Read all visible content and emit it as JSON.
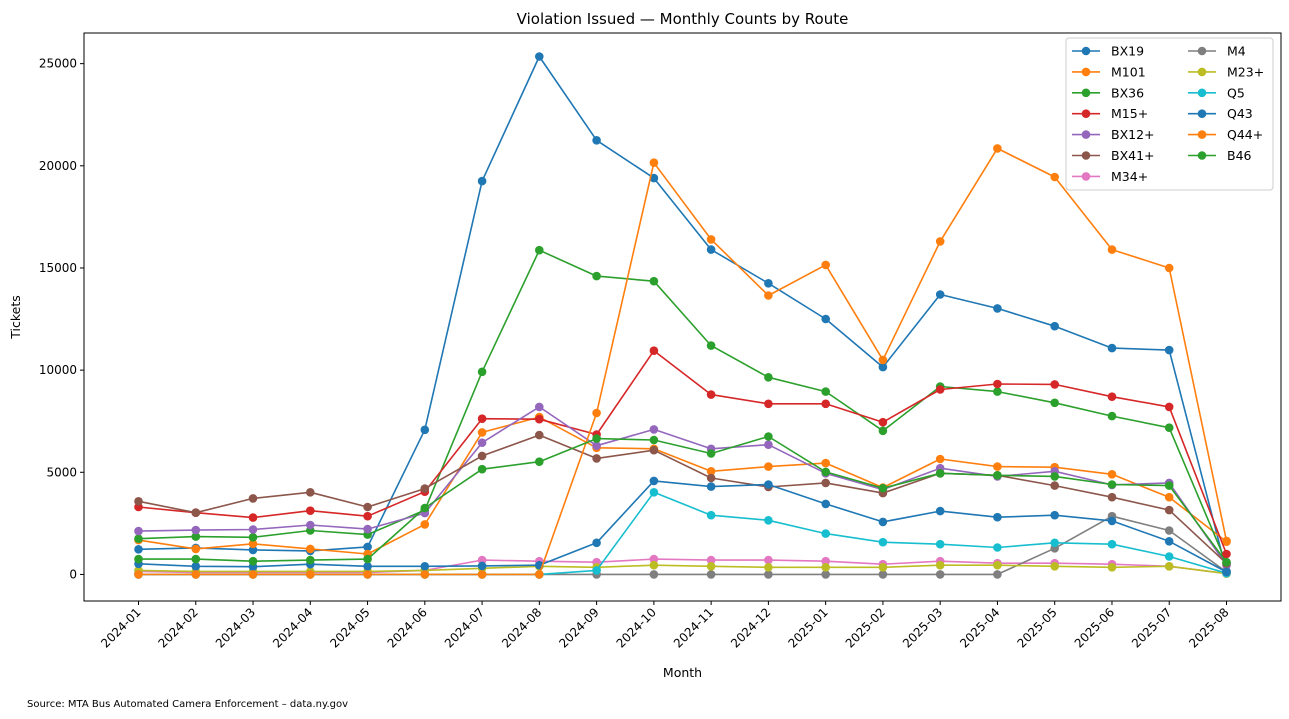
{
  "chart_data": {
    "type": "line",
    "title": "Violation Issued — Monthly Counts by Route",
    "xlabel": "Month",
    "ylabel": "Tickets",
    "ylim": [
      -1300,
      26500
    ],
    "yticks": [
      0,
      5000,
      10000,
      15000,
      20000,
      25000
    ],
    "grid": false,
    "legend_position": "top-right",
    "source": "Source: MTA Bus Automated Camera Enforcement – data.ny.gov",
    "x": [
      "2024-01",
      "2024-02",
      "2024-03",
      "2024-04",
      "2024-05",
      "2024-06",
      "2024-07",
      "2024-08",
      "2024-09",
      "2024-10",
      "2024-11",
      "2024-12",
      "2025-01",
      "2025-02",
      "2025-03",
      "2025-04",
      "2025-05",
      "2025-06",
      "2025-07",
      "2025-08"
    ],
    "series": [
      {
        "name": "BX19",
        "color": "#1f77b4",
        "values": [
          1230,
          1300,
          1200,
          1150,
          1350,
          7080,
          19250,
          25350,
          21250,
          19400,
          15900,
          14250,
          12500,
          10150,
          13700,
          13020,
          12150,
          11080,
          10980,
          160
        ]
      },
      {
        "name": "M101",
        "color": "#ff7f0e",
        "values": [
          1680,
          1250,
          1500,
          1250,
          1000,
          2450,
          6950,
          7700,
          6200,
          6150,
          5050,
          5280,
          5450,
          4250,
          5650,
          5280,
          5250,
          4900,
          3780,
          1600
        ]
      },
      {
        "name": "BX36",
        "color": "#2ca02c",
        "values": [
          1750,
          1850,
          1820,
          2150,
          1950,
          3150,
          9920,
          15870,
          14600,
          14350,
          11200,
          9650,
          8950,
          7030,
          9200,
          8950,
          8400,
          7750,
          7180,
          540
        ]
      },
      {
        "name": "M15+",
        "color": "#d62728",
        "values": [
          3300,
          3020,
          2780,
          3120,
          2850,
          4050,
          7620,
          7600,
          6850,
          10950,
          8800,
          8350,
          8350,
          7450,
          9050,
          9320,
          9300,
          8700,
          8200,
          1000
        ]
      },
      {
        "name": "BX12+",
        "color": "#9467bd",
        "values": [
          2120,
          2170,
          2200,
          2420,
          2220,
          3000,
          6450,
          8200,
          6300,
          7100,
          6150,
          6350,
          4950,
          4150,
          5200,
          4800,
          5050,
          4380,
          4480,
          450
        ]
      },
      {
        "name": "BX41+",
        "color": "#8c564b",
        "values": [
          3580,
          3020,
          3720,
          4020,
          3300,
          4200,
          5800,
          6820,
          5680,
          6080,
          4720,
          4280,
          4480,
          3980,
          4950,
          4850,
          4350,
          3780,
          3150,
          540
        ]
      },
      {
        "name": "M34+",
        "color": "#e377c2",
        "values": [
          150,
          100,
          100,
          100,
          100,
          200,
          700,
          650,
          600,
          750,
          700,
          700,
          650,
          500,
          650,
          550,
          550,
          500,
          400,
          40
        ]
      },
      {
        "name": "M4",
        "color": "#7f7f7f",
        "values": [
          0,
          0,
          0,
          0,
          0,
          0,
          0,
          0,
          0,
          0,
          0,
          0,
          0,
          0,
          0,
          0,
          1280,
          2850,
          2150,
          120
        ]
      },
      {
        "name": "M23+",
        "color": "#bcbd22",
        "values": [
          200,
          150,
          150,
          150,
          150,
          200,
          300,
          400,
          350,
          450,
          400,
          350,
          350,
          350,
          450,
          450,
          400,
          350,
          400,
          40
        ]
      },
      {
        "name": "Q5",
        "color": "#17becf",
        "values": [
          0,
          0,
          0,
          0,
          0,
          0,
          0,
          0,
          200,
          4020,
          2900,
          2650,
          2000,
          1580,
          1480,
          1320,
          1550,
          1480,
          880,
          60
        ]
      },
      {
        "name": "Q43",
        "color": "#1f77b4",
        "values": [
          520,
          400,
          380,
          500,
          400,
          400,
          420,
          450,
          1550,
          4580,
          4300,
          4400,
          3450,
          2570,
          3100,
          2800,
          2900,
          2620,
          1620,
          120
        ]
      },
      {
        "name": "Q44+",
        "color": "#ff7f0e",
        "values": [
          0,
          0,
          0,
          0,
          0,
          0,
          0,
          0,
          7900,
          20150,
          16400,
          13650,
          15150,
          10500,
          16300,
          20850,
          19450,
          15900,
          15000,
          1640
        ]
      },
      {
        "name": "B46",
        "color": "#2ca02c",
        "values": [
          750,
          750,
          650,
          700,
          750,
          3250,
          5150,
          5520,
          6650,
          6580,
          5920,
          6750,
          5020,
          4220,
          4950,
          4850,
          4800,
          4400,
          4350,
          600
        ]
      }
    ]
  }
}
